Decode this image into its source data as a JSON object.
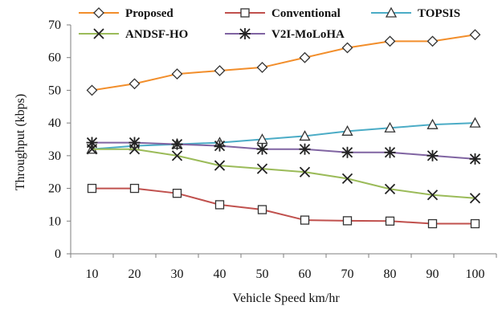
{
  "chart_data": {
    "type": "line",
    "xlabel": "Vehicle Speed km/hr",
    "ylabel": "Throughput (kbps)",
    "ylim": [
      0,
      70
    ],
    "yticks": [
      0,
      10,
      20,
      30,
      40,
      50,
      60,
      70
    ],
    "x": [
      10,
      20,
      30,
      40,
      50,
      60,
      70,
      80,
      90,
      100
    ],
    "legend_position": "top",
    "grid": false,
    "series": [
      {
        "name": "Proposed",
        "color": "#F28E2B",
        "marker": "diamond",
        "values": [
          50,
          52,
          55,
          56,
          57,
          60,
          63,
          65,
          65,
          67
        ]
      },
      {
        "name": "Conventional",
        "color": "#C0504D",
        "marker": "square",
        "values": [
          20,
          20,
          18.5,
          15,
          13.5,
          10.3,
          10.1,
          10,
          9.2,
          9.2
        ]
      },
      {
        "name": "TOPSIS",
        "color": "#4BACC6",
        "marker": "triangle",
        "values": [
          32,
          33,
          33.5,
          34,
          35,
          36,
          37.5,
          38.5,
          39.5,
          40
        ]
      },
      {
        "name": "ANDSF-HO",
        "color": "#9BBB59",
        "marker": "x",
        "values": [
          32,
          32,
          30,
          27,
          26,
          25,
          23,
          19.8,
          18,
          17
        ]
      },
      {
        "name": "V2I-MoLoHA",
        "color": "#8064A2",
        "marker": "asterisk",
        "values": [
          34,
          34,
          33.5,
          33,
          32,
          32,
          31,
          31,
          30,
          29
        ]
      }
    ]
  }
}
